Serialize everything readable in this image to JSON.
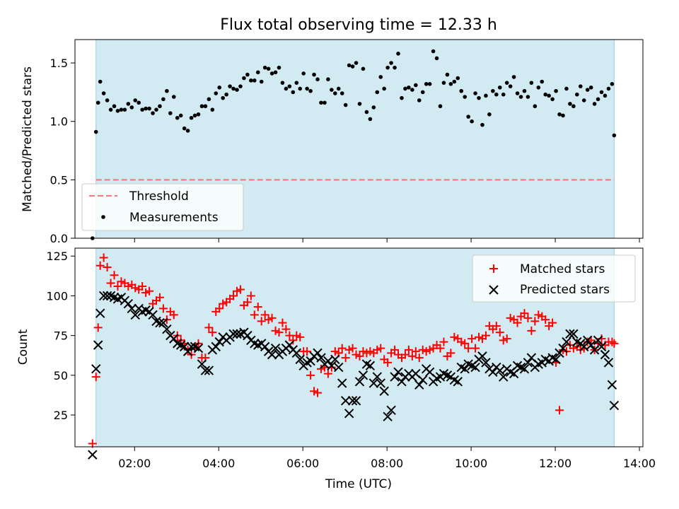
{
  "chart_data": [
    {
      "type": "scatter",
      "title": "Flux total observing time = 12.33 h",
      "xlabel": "",
      "ylabel": "Matched/Predicted stars",
      "ylim": [
        0,
        1.7
      ],
      "yticks": [
        "0.0",
        "0.5",
        "1.0",
        "1.5"
      ],
      "ytick_values": [
        0,
        0.5,
        1.0,
        1.5
      ],
      "observing_window": [
        "01:05",
        "13:24"
      ],
      "shade_color": "#add8e6",
      "threshold": {
        "name": "Threshold",
        "value": 0.5,
        "color": "#f08080",
        "style": "dashed"
      },
      "legend": {
        "placement": "lower-left",
        "entries": [
          "Threshold",
          "Measurements"
        ]
      },
      "series": [
        {
          "name": "Measurements",
          "color": "#000000",
          "marker": "dot",
          "x": [
            "01:00",
            "01:05",
            "01:08",
            "01:11",
            "01:16",
            "01:21",
            "01:26",
            "01:31",
            "01:36",
            "01:41",
            "01:46",
            "01:51",
            "01:56",
            "02:01",
            "02:06",
            "02:11",
            "02:16",
            "02:21",
            "02:26",
            "02:31",
            "02:36",
            "02:41",
            "02:46",
            "02:51",
            "02:56",
            "03:01",
            "03:06",
            "03:11",
            "03:16",
            "03:21",
            "03:26",
            "03:31",
            "03:36",
            "03:41",
            "03:46",
            "03:51",
            "03:56",
            "04:01",
            "04:06",
            "04:11",
            "04:16",
            "04:21",
            "04:26",
            "04:31",
            "04:36",
            "04:41",
            "04:46",
            "04:51",
            "04:56",
            "05:01",
            "05:06",
            "05:11",
            "05:16",
            "05:21",
            "05:26",
            "05:31",
            "05:36",
            "05:41",
            "05:46",
            "05:51",
            "05:56",
            "06:01",
            "06:06",
            "06:11",
            "06:16",
            "06:21",
            "06:26",
            "06:31",
            "06:36",
            "06:41",
            "06:46",
            "06:51",
            "06:56",
            "07:01",
            "07:06",
            "07:11",
            "07:16",
            "07:21",
            "07:26",
            "07:31",
            "07:36",
            "07:41",
            "07:46",
            "07:51",
            "07:56",
            "08:01",
            "08:06",
            "08:11",
            "08:16",
            "08:21",
            "08:26",
            "08:31",
            "08:36",
            "08:41",
            "08:46",
            "08:51",
            "08:56",
            "09:01",
            "09:06",
            "09:11",
            "09:16",
            "09:21",
            "09:26",
            "09:31",
            "09:36",
            "09:41",
            "09:46",
            "09:51",
            "09:56",
            "10:01",
            "10:06",
            "10:11",
            "10:16",
            "10:21",
            "10:26",
            "10:31",
            "10:36",
            "10:41",
            "10:46",
            "10:51",
            "10:56",
            "11:01",
            "11:06",
            "11:11",
            "11:16",
            "11:21",
            "11:26",
            "11:31",
            "11:36",
            "11:41",
            "11:46",
            "11:51",
            "11:56",
            "12:01",
            "12:06",
            "12:11",
            "12:16",
            "12:21",
            "12:26",
            "12:31",
            "12:36",
            "12:41",
            "12:46",
            "12:51",
            "12:56",
            "13:01",
            "13:06",
            "13:11",
            "13:16",
            "13:21",
            "13:24"
          ],
          "y": [
            0.0,
            0.91,
            1.16,
            1.34,
            1.24,
            1.18,
            1.1,
            1.13,
            1.09,
            1.1,
            1.1,
            1.15,
            1.12,
            1.18,
            1.16,
            1.1,
            1.11,
            1.11,
            1.07,
            1.1,
            1.13,
            1.19,
            1.26,
            1.07,
            1.21,
            1.03,
            1.05,
            0.94,
            0.92,
            1.03,
            1.05,
            1.06,
            1.13,
            1.13,
            1.19,
            1.1,
            1.24,
            1.29,
            1.2,
            1.23,
            1.3,
            1.28,
            1.27,
            1.3,
            1.37,
            1.4,
            1.35,
            1.35,
            1.42,
            1.34,
            1.46,
            1.45,
            1.41,
            1.42,
            1.46,
            1.33,
            1.28,
            1.3,
            1.25,
            1.33,
            1.28,
            1.41,
            1.28,
            1.26,
            1.4,
            1.36,
            1.16,
            1.16,
            1.36,
            1.27,
            1.24,
            1.28,
            1.24,
            1.14,
            1.48,
            1.47,
            1.5,
            1.15,
            1.45,
            1.08,
            1.02,
            1.12,
            1.25,
            1.38,
            1.28,
            1.46,
            1.5,
            1.46,
            1.58,
            1.2,
            1.28,
            1.29,
            1.27,
            1.31,
            1.18,
            1.25,
            1.32,
            1.32,
            1.6,
            1.54,
            1.13,
            1.33,
            1.4,
            1.32,
            1.34,
            1.37,
            1.26,
            1.21,
            1.04,
            1.0,
            1.24,
            1.2,
            0.97,
            1.22,
            1.06,
            1.26,
            1.23,
            1.29,
            1.23,
            1.33,
            1.3,
            1.38,
            1.24,
            1.21,
            1.26,
            1.21,
            1.33,
            1.13,
            1.29,
            1.34,
            1.23,
            1.22,
            1.19,
            1.26,
            1.06,
            1.05,
            1.28,
            1.15,
            1.13,
            1.23,
            1.3,
            1.18,
            1.27,
            1.29,
            1.15,
            1.19,
            1.25,
            1.22,
            1.28,
            1.32,
            0.88
          ]
        }
      ]
    },
    {
      "type": "scatter",
      "title": "",
      "xlabel": "Time (UTC)",
      "ylabel": "Count",
      "ylim": [
        5,
        130
      ],
      "yticks": [
        "25",
        "50",
        "75",
        "100",
        "125"
      ],
      "ytick_values": [
        25,
        50,
        75,
        100,
        125
      ],
      "xlim": [
        "00:35",
        "14:05"
      ],
      "xticks": [
        "02:00",
        "04:00",
        "06:00",
        "08:00",
        "10:00",
        "12:00",
        "14:00"
      ],
      "observing_window": [
        "01:05",
        "13:24"
      ],
      "shade_color": "#add8e6",
      "legend": {
        "placement": "upper-right",
        "entries": [
          "Matched stars",
          "Predicted stars"
        ]
      },
      "series": [
        {
          "name": "Matched stars",
          "color": "#ff0000",
          "marker": "plus",
          "x": [
            "01:00",
            "01:05",
            "01:08",
            "01:11",
            "01:16",
            "01:21",
            "01:26",
            "01:31",
            "01:36",
            "01:41",
            "01:46",
            "01:51",
            "01:56",
            "02:01",
            "02:06",
            "02:11",
            "02:16",
            "02:21",
            "02:26",
            "02:31",
            "02:36",
            "02:41",
            "02:46",
            "02:51",
            "02:56",
            "03:01",
            "03:06",
            "03:11",
            "03:16",
            "03:21",
            "03:26",
            "03:31",
            "03:36",
            "03:41",
            "03:46",
            "03:51",
            "03:56",
            "04:01",
            "04:06",
            "04:11",
            "04:16",
            "04:21",
            "04:26",
            "04:31",
            "04:36",
            "04:41",
            "04:46",
            "04:51",
            "04:56",
            "05:01",
            "05:06",
            "05:11",
            "05:16",
            "05:21",
            "05:26",
            "05:31",
            "05:36",
            "05:41",
            "05:46",
            "05:51",
            "05:56",
            "06:01",
            "06:06",
            "06:11",
            "06:16",
            "06:21",
            "06:26",
            "06:31",
            "06:36",
            "06:41",
            "06:46",
            "06:51",
            "06:56",
            "07:01",
            "07:06",
            "07:11",
            "07:16",
            "07:21",
            "07:26",
            "07:31",
            "07:36",
            "07:41",
            "07:46",
            "07:51",
            "07:56",
            "08:01",
            "08:06",
            "08:11",
            "08:16",
            "08:21",
            "08:26",
            "08:31",
            "08:36",
            "08:41",
            "08:46",
            "08:51",
            "08:56",
            "09:01",
            "09:06",
            "09:11",
            "09:16",
            "09:21",
            "09:26",
            "09:31",
            "09:36",
            "09:41",
            "09:46",
            "09:51",
            "09:56",
            "10:01",
            "10:06",
            "10:11",
            "10:16",
            "10:21",
            "10:26",
            "10:31",
            "10:36",
            "10:41",
            "10:46",
            "10:51",
            "10:56",
            "11:01",
            "11:06",
            "11:11",
            "11:16",
            "11:21",
            "11:26",
            "11:31",
            "11:36",
            "11:41",
            "11:46",
            "11:51",
            "11:56",
            "12:01",
            "12:06",
            "12:11",
            "12:16",
            "12:21",
            "12:26",
            "12:31",
            "12:36",
            "12:41",
            "12:46",
            "12:51",
            "12:56",
            "13:01",
            "13:06",
            "13:11",
            "13:16",
            "13:21",
            "13:24"
          ],
          "y": [
            7,
            49,
            80,
            119,
            124,
            118,
            108,
            113,
            106,
            109,
            108,
            106,
            107,
            105,
            104,
            106,
            102,
            103,
            95,
            97,
            99,
            92,
            85,
            90,
            88,
            75,
            72,
            70,
            66,
            63,
            67,
            70,
            61,
            61,
            80,
            77,
            90,
            92,
            95,
            96,
            98,
            100,
            103,
            104,
            94,
            96,
            100,
            88,
            93,
            84,
            88,
            85,
            86,
            78,
            77,
            83,
            79,
            75,
            72,
            75,
            74,
            65,
            65,
            50,
            40,
            39,
            54,
            55,
            51,
            55,
            65,
            64,
            67,
            61,
            66,
            67,
            63,
            62,
            65,
            64,
            65,
            64,
            66,
            67,
            60,
            58,
            64,
            66,
            63,
            61,
            63,
            66,
            62,
            65,
            61,
            66,
            65,
            66,
            67,
            69,
            67,
            71,
            62,
            64,
            74,
            73,
            71,
            70,
            67,
            73,
            67,
            74,
            73,
            75,
            81,
            79,
            81,
            77,
            72,
            73,
            86,
            85,
            83,
            87,
            89,
            86,
            78,
            84,
            88,
            87,
            85,
            81,
            83,
            58,
            28,
            66,
            65,
            69,
            67,
            68,
            66,
            67,
            71,
            72,
            66,
            70,
            73,
            69,
            71,
            71,
            70
          ]
        },
        {
          "name": "Predicted stars",
          "color": "#000000",
          "marker": "x",
          "x": [
            "01:00",
            "01:05",
            "01:08",
            "01:11",
            "01:16",
            "01:21",
            "01:26",
            "01:31",
            "01:36",
            "01:41",
            "01:46",
            "01:51",
            "01:56",
            "02:01",
            "02:06",
            "02:11",
            "02:16",
            "02:21",
            "02:26",
            "02:31",
            "02:36",
            "02:41",
            "02:46",
            "02:51",
            "02:56",
            "03:01",
            "03:06",
            "03:11",
            "03:16",
            "03:21",
            "03:26",
            "03:31",
            "03:36",
            "03:41",
            "03:46",
            "03:51",
            "03:56",
            "04:01",
            "04:06",
            "04:11",
            "04:16",
            "04:21",
            "04:26",
            "04:31",
            "04:36",
            "04:41",
            "04:46",
            "04:51",
            "04:56",
            "05:01",
            "05:06",
            "05:11",
            "05:16",
            "05:21",
            "05:26",
            "05:31",
            "05:36",
            "05:41",
            "05:46",
            "05:51",
            "05:56",
            "06:01",
            "06:06",
            "06:11",
            "06:16",
            "06:21",
            "06:26",
            "06:31",
            "06:36",
            "06:41",
            "06:46",
            "06:51",
            "06:56",
            "07:01",
            "07:06",
            "07:11",
            "07:16",
            "07:21",
            "07:26",
            "07:31",
            "07:36",
            "07:41",
            "07:46",
            "07:51",
            "07:56",
            "08:01",
            "08:06",
            "08:11",
            "08:16",
            "08:21",
            "08:26",
            "08:31",
            "08:36",
            "08:41",
            "08:46",
            "08:51",
            "08:56",
            "09:01",
            "09:06",
            "09:11",
            "09:16",
            "09:21",
            "09:26",
            "09:31",
            "09:36",
            "09:41",
            "09:46",
            "09:51",
            "09:56",
            "10:01",
            "10:06",
            "10:11",
            "10:16",
            "10:21",
            "10:26",
            "10:31",
            "10:36",
            "10:41",
            "10:46",
            "10:51",
            "10:56",
            "11:01",
            "11:06",
            "11:11",
            "11:16",
            "11:21",
            "11:26",
            "11:31",
            "11:36",
            "11:41",
            "11:46",
            "11:51",
            "11:56",
            "12:01",
            "12:06",
            "12:11",
            "12:16",
            "12:21",
            "12:26",
            "12:31",
            "12:36",
            "12:41",
            "12:46",
            "12:51",
            "12:56",
            "13:01",
            "13:06",
            "13:11",
            "13:16",
            "13:21",
            "13:24"
          ],
          "y": [
            0,
            54,
            69,
            89,
            100,
            100,
            100,
            99,
            98,
            99,
            97,
            95,
            92,
            88,
            92,
            90,
            91,
            90,
            88,
            84,
            83,
            83,
            79,
            75,
            73,
            70,
            69,
            68,
            65,
            68,
            68,
            67,
            57,
            53,
            53,
            66,
            68,
            71,
            74,
            72,
            74,
            76,
            76,
            76,
            77,
            75,
            72,
            70,
            69,
            70,
            68,
            65,
            63,
            67,
            63,
            65,
            67,
            69,
            66,
            64,
            60,
            56,
            58,
            59,
            62,
            64,
            61,
            57,
            59,
            56,
            60,
            55,
            45,
            34,
            26,
            34,
            34,
            46,
            50,
            57,
            56,
            45,
            49,
            45,
            40,
            24,
            28,
            49,
            52,
            46,
            49,
            51,
            49,
            51,
            44,
            47,
            54,
            52,
            46,
            48,
            49,
            51,
            50,
            49,
            47,
            46,
            55,
            54,
            57,
            56,
            55,
            60,
            62,
            58,
            54,
            52,
            55,
            53,
            49,
            54,
            52,
            51,
            56,
            55,
            54,
            58,
            61,
            55,
            57,
            58,
            60,
            59,
            61,
            60,
            64,
            67,
            71,
            76,
            76,
            71,
            70,
            68,
            72,
            69,
            66,
            72,
            68,
            63,
            58,
            44,
            31
          ]
        }
      ]
    }
  ]
}
